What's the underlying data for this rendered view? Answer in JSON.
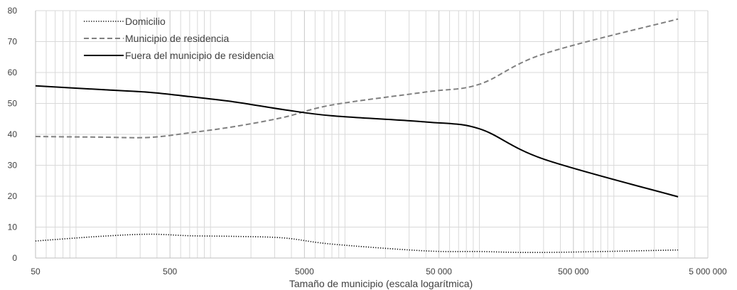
{
  "chart_data": {
    "type": "line",
    "xlabel": "Tamaño de municipio (escala logarítmica)",
    "ylabel": "",
    "x_scale": "log",
    "xlim": [
      50,
      5000000
    ],
    "ylim": [
      0,
      80
    ],
    "x_ticks": [
      50,
      500,
      5000,
      50000,
      500000,
      5000000
    ],
    "x_tick_labels": [
      "50",
      "500",
      "5000",
      "50 000",
      "500 000",
      "5 000 000"
    ],
    "y_ticks": [
      0,
      10,
      20,
      30,
      40,
      50,
      60,
      70,
      80
    ],
    "y_tick_labels": [
      "0",
      "10",
      "20",
      "30",
      "40",
      "50",
      "60",
      "70",
      "80"
    ],
    "grid": true,
    "legend_position": "top-left",
    "series": [
      {
        "name": "Domicilio",
        "style": "dotted",
        "color": "#000000",
        "points": [
          [
            50,
            5.5
          ],
          [
            150,
            7
          ],
          [
            350,
            7.7
          ],
          [
            700,
            7.2
          ],
          [
            1500,
            7
          ],
          [
            3500,
            6.5
          ],
          [
            8000,
            4.5
          ],
          [
            40000,
            2.3
          ],
          [
            100000,
            2.1
          ],
          [
            300000,
            1.8
          ],
          [
            3000000,
            2.6
          ]
        ]
      },
      {
        "name": "Municipio de residencia",
        "style": "dashed",
        "color": "#808080",
        "points": [
          [
            50,
            39.3
          ],
          [
            150,
            39.1
          ],
          [
            350,
            39
          ],
          [
            700,
            40.5
          ],
          [
            1500,
            42.5
          ],
          [
            3500,
            45.5
          ],
          [
            8000,
            49.5
          ],
          [
            40000,
            53.7
          ],
          [
            100000,
            56.2
          ],
          [
            300000,
            66
          ],
          [
            3000000,
            77.3
          ]
        ]
      },
      {
        "name": "Fuera del municipio de residencia",
        "style": "solid",
        "color": "#000000",
        "points": [
          [
            50,
            55.7
          ],
          [
            150,
            54.5
          ],
          [
            350,
            53.6
          ],
          [
            700,
            52.2
          ],
          [
            1500,
            50.5
          ],
          [
            3500,
            48
          ],
          [
            8000,
            46
          ],
          [
            40000,
            44
          ],
          [
            100000,
            41.8
          ],
          [
            300000,
            32
          ],
          [
            3000000,
            19.8
          ]
        ]
      }
    ]
  }
}
